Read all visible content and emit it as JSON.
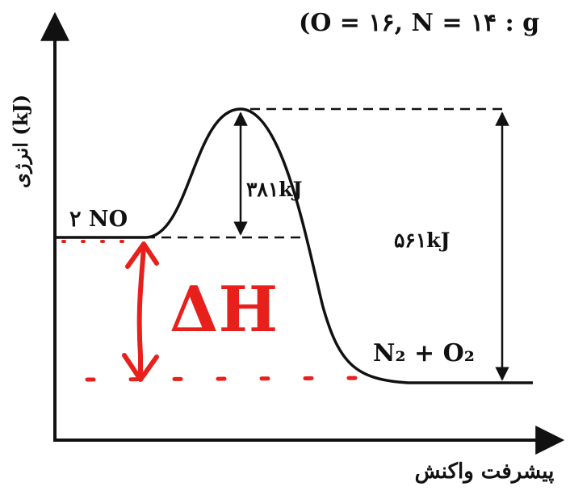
{
  "header_note": "(O = ۱۶, N = ۱۴ : g",
  "y_axis_label": "انرژی (kJ)",
  "x_axis_label": "پیشرفت واکنش",
  "reactant_label": "۲ NO",
  "product_label": "N₂ + O₂",
  "activation_energy_label": "۳۸۱kJ",
  "reverse_activation_label": "۵۶۱kJ",
  "annotation_label": "ΔH",
  "colors": {
    "ink": "#111111",
    "annotation": "#e8201c"
  }
}
